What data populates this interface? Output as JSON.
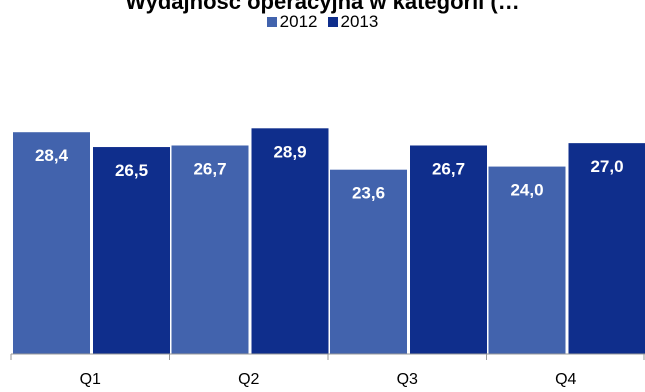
{
  "chart_data": {
    "type": "bar",
    "title": "Wydajność operacyjna w kategorii (…",
    "categories": [
      "Q1",
      "Q2",
      "Q3",
      "Q4"
    ],
    "series": [
      {
        "name": "2012",
        "values": [
          28.4,
          26.7,
          23.6,
          24.0
        ],
        "labels": [
          "28,4",
          "26,7",
          "23,6",
          "24,0"
        ],
        "color": "#4263ad"
      },
      {
        "name": "2013",
        "values": [
          26.5,
          28.9,
          26.7,
          27.0
        ],
        "labels": [
          "26,5",
          "28,9",
          "26,7",
          "27,0"
        ],
        "color": "#0f2e8c"
      }
    ],
    "xlabel": "",
    "ylabel": "",
    "ylim": [
      0,
      31.5
    ],
    "grid": false,
    "legend_position": "top-center"
  }
}
